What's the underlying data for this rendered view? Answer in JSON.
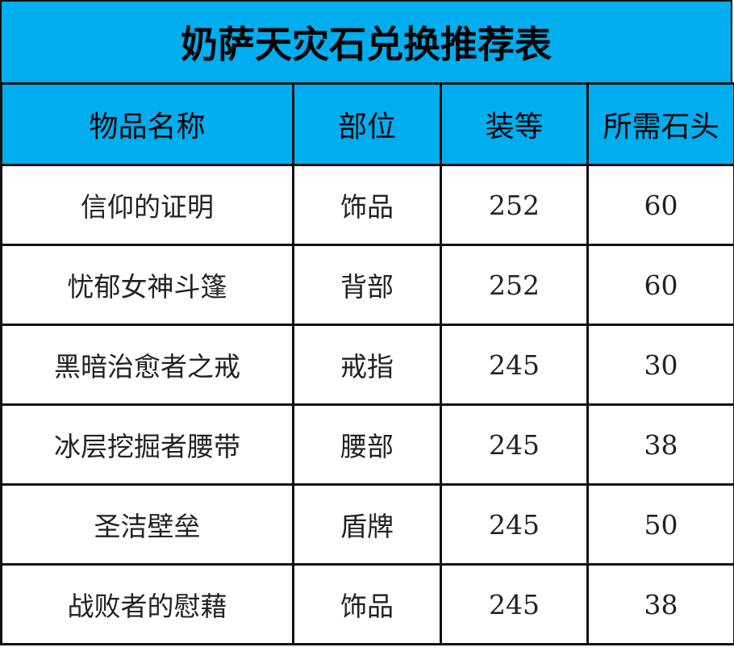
{
  "title": "奶萨天灾石兑换推荐表",
  "colors": {
    "header_bg": "#00AEEF",
    "border": "#111111"
  },
  "columns": [
    "物品名称",
    "部位",
    "装等",
    "所需石头"
  ],
  "rows": [
    [
      "信仰的证明",
      "饰品",
      "252",
      "60"
    ],
    [
      "忧郁女神斗篷",
      "背部",
      "252",
      "60"
    ],
    [
      "黑暗治愈者之戒",
      "戒指",
      "245",
      "30"
    ],
    [
      "冰层挖掘者腰带",
      "腰部",
      "245",
      "38"
    ],
    [
      "圣洁壁垒",
      "盾牌",
      "245",
      "50"
    ],
    [
      "战败者的慰藉",
      "饰品",
      "245",
      "38"
    ]
  ]
}
